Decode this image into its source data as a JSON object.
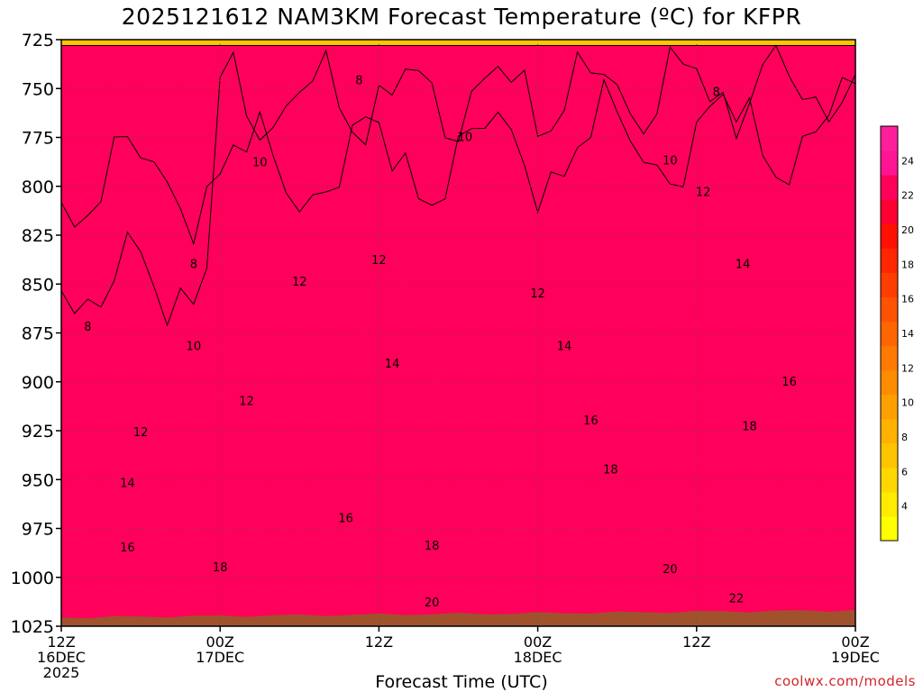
{
  "title": "2025121612 NAM3KM Forecast Temperature (ºC) for KFPR",
  "xlabel": "Forecast Time (UTC)",
  "credit": "coolwx.com/models",
  "colors": {
    "levels": [
      "#ffff00",
      "#ffea00",
      "#ffd700",
      "#ffc400",
      "#ffb200",
      "#ff9f00",
      "#ff8c00",
      "#ff7a00",
      "#ff6600",
      "#ff5200",
      "#ff3d00",
      "#ff2600",
      "#ff1000",
      "#ff0033",
      "#ff005a",
      "#ff1493",
      "#ff1f9b"
    ],
    "ground": "#a0522d"
  },
  "chart_data": {
    "type": "heatmap",
    "y_ticks": [
      "725",
      "750",
      "775",
      "800",
      "825",
      "850",
      "875",
      "900",
      "925",
      "950",
      "975",
      "1000",
      "1025"
    ],
    "x_ticks": [
      {
        "label": "12Z",
        "date": "16DEC",
        "year": "2025"
      },
      {
        "label": "00Z",
        "date": "17DEC"
      },
      {
        "label": "12Z"
      },
      {
        "label": "00Z",
        "date": "18DEC"
      },
      {
        "label": "12Z"
      },
      {
        "label": "00Z",
        "date": "19DEC"
      }
    ],
    "ylim": [
      725,
      1025
    ],
    "xlim_hours": [
      0,
      60
    ],
    "contour_interval": 2,
    "colorbar_ticks": [
      "4",
      "6",
      "8",
      "10",
      "12",
      "14",
      "16",
      "18",
      "20",
      "22",
      "24"
    ],
    "contour_labels": [
      {
        "text": "8",
        "hour": 22.5,
        "p": 746
      },
      {
        "text": "8",
        "hour": 49.5,
        "p": 752
      },
      {
        "text": "8",
        "hour": 2.0,
        "p": 872
      },
      {
        "text": "8",
        "hour": 10.0,
        "p": 840
      },
      {
        "text": "10",
        "hour": 15.0,
        "p": 788
      },
      {
        "text": "10",
        "hour": 30.5,
        "p": 775
      },
      {
        "text": "10",
        "hour": 46.0,
        "p": 787
      },
      {
        "text": "10",
        "hour": 10.0,
        "p": 882
      },
      {
        "text": "12",
        "hour": 48.5,
        "p": 803
      },
      {
        "text": "12",
        "hour": 18.0,
        "p": 849
      },
      {
        "text": "12",
        "hour": 24.0,
        "p": 838
      },
      {
        "text": "12",
        "hour": 36.0,
        "p": 855
      },
      {
        "text": "12",
        "hour": 14.0,
        "p": 910
      },
      {
        "text": "12",
        "hour": 6.0,
        "p": 926
      },
      {
        "text": "14",
        "hour": 51.5,
        "p": 840
      },
      {
        "text": "14",
        "hour": 38.0,
        "p": 882
      },
      {
        "text": "14",
        "hour": 25.0,
        "p": 891
      },
      {
        "text": "14",
        "hour": 5.0,
        "p": 952
      },
      {
        "text": "16",
        "hour": 55.0,
        "p": 900
      },
      {
        "text": "16",
        "hour": 40.0,
        "p": 920
      },
      {
        "text": "16",
        "hour": 21.5,
        "p": 970
      },
      {
        "text": "16",
        "hour": 5.0,
        "p": 985
      },
      {
        "text": "18",
        "hour": 52.0,
        "p": 923
      },
      {
        "text": "18",
        "hour": 41.5,
        "p": 945
      },
      {
        "text": "18",
        "hour": 28.0,
        "p": 984
      },
      {
        "text": "18",
        "hour": 12.0,
        "p": 995
      },
      {
        "text": "20",
        "hour": 46.0,
        "p": 996
      },
      {
        "text": "20",
        "hour": 28.0,
        "p": 1013
      },
      {
        "text": "22",
        "hour": 51.0,
        "p": 1011
      }
    ]
  }
}
